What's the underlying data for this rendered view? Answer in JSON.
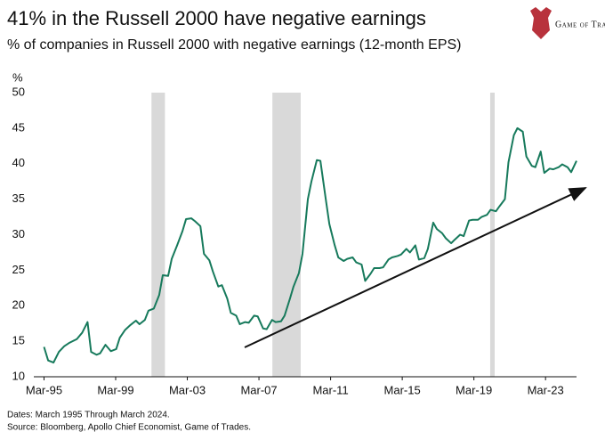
{
  "chart_data": {
    "type": "line",
    "title": "41% in the Russell 2000 have negative earnings",
    "subtitle": "% of companies in Russell 2000 with negative earnings (12-month EPS)",
    "y_label": "%",
    "logo": "Game of Trades",
    "notes": [
      "Dates:  March 1995 Through March 2024.",
      "Source: Bloomberg, Apollo Chief Economist, Game of Trades."
    ],
    "color": "#177a5c",
    "shade_color": "#d9d9d9",
    "shaded": [
      [
        2001.17,
        2001.92
      ],
      [
        2007.92,
        2009.5
      ],
      [
        2020.08,
        2020.33
      ]
    ],
    "x": [
      1995.17,
      1995.4,
      1995.7,
      1996.0,
      1996.3,
      1996.6,
      1997.0,
      1997.3,
      1997.6,
      1997.8,
      1998.1,
      1998.3,
      1998.6,
      1998.9,
      1999.2,
      1999.4,
      1999.7,
      2000.0,
      2000.3,
      2000.5,
      2000.8,
      2001.0,
      2001.3,
      2001.6,
      2001.8,
      2002.1,
      2002.3,
      2002.6,
      2002.9,
      2003.1,
      2003.4,
      2003.6,
      2003.9,
      2004.1,
      2004.4,
      2004.6,
      2004.9,
      2005.1,
      2005.4,
      2005.6,
      2005.9,
      2006.1,
      2006.4,
      2006.6,
      2006.9,
      2007.1,
      2007.4,
      2007.6,
      2007.9,
      2008.1,
      2008.4,
      2008.6,
      2008.9,
      2009.1,
      2009.4,
      2009.6,
      2009.9,
      2010.1,
      2010.4,
      2010.6,
      2010.9,
      2011.1,
      2011.4,
      2011.6,
      2011.9,
      2012.1,
      2012.4,
      2012.6,
      2012.9,
      2013.1,
      2013.4,
      2013.6,
      2013.9,
      2014.1,
      2014.4,
      2014.6,
      2014.9,
      2015.1,
      2015.4,
      2015.6,
      2015.9,
      2016.1,
      2016.4,
      2016.6,
      2016.9,
      2017.1,
      2017.4,
      2017.6,
      2017.9,
      2018.1,
      2018.4,
      2018.6,
      2018.9,
      2019.1,
      2019.4,
      2019.6,
      2019.9,
      2020.1,
      2020.4,
      2020.6,
      2020.9,
      2021.1,
      2021.4,
      2021.6,
      2021.9,
      2022.1,
      2022.4,
      2022.6,
      2022.9,
      2023.1,
      2023.4,
      2023.6,
      2023.9,
      2024.1,
      2024.4,
      2024.6,
      2024.9
    ],
    "values": [
      14.2,
      12.3,
      12.0,
      13.5,
      14.3,
      14.8,
      15.3,
      16.2,
      17.7,
      13.5,
      13.1,
      13.3,
      14.5,
      13.6,
      13.9,
      15.5,
      16.6,
      17.3,
      17.9,
      17.4,
      18.0,
      19.3,
      19.6,
      21.5,
      24.3,
      24.2,
      26.6,
      28.5,
      30.5,
      32.2,
      32.3,
      31.9,
      31.2,
      27.3,
      26.4,
      24.8,
      22.7,
      22.9,
      21.0,
      19.0,
      18.6,
      17.4,
      17.7,
      17.6,
      18.6,
      18.5,
      16.8,
      16.7,
      18.0,
      17.7,
      17.8,
      18.6,
      21.0,
      22.7,
      24.6,
      27.3,
      35.0,
      37.5,
      40.5,
      40.4,
      35.0,
      31.5,
      28.5,
      26.8,
      26.3,
      26.6,
      26.8,
      26.1,
      25.8,
      23.5,
      24.5,
      25.3,
      25.3,
      25.4,
      26.5,
      26.8,
      27.0,
      27.2,
      28.0,
      27.5,
      28.5,
      26.5,
      26.7,
      28.0,
      31.7,
      30.8,
      30.2,
      29.5,
      28.8,
      29.3,
      30.0,
      29.8,
      32.0,
      32.1,
      32.1,
      32.5,
      32.8,
      33.5,
      33.3,
      34.0,
      35.0,
      40.2,
      44.0,
      45.0,
      44.5,
      41.0,
      39.7,
      39.5,
      41.7,
      38.7,
      39.3,
      39.2,
      39.5,
      39.9,
      39.5,
      38.8,
      40.4
    ],
    "xlim": [
      1994.6,
      2024.9
    ],
    "xticks": [
      {
        "value": 1995.17,
        "label": "Mar-95"
      },
      {
        "value": 1999.17,
        "label": "Mar-99"
      },
      {
        "value": 2003.17,
        "label": "Mar-03"
      },
      {
        "value": 2007.17,
        "label": "Mar-07"
      },
      {
        "value": 2011.17,
        "label": "Mar-11"
      },
      {
        "value": 2015.17,
        "label": "Mar-15"
      },
      {
        "value": 2019.17,
        "label": "Mar-19"
      },
      {
        "value": 2023.17,
        "label": "Mar-23"
      }
    ],
    "ylim": [
      10,
      50
    ],
    "yticks": [
      10,
      15,
      20,
      25,
      30,
      35,
      40,
      45,
      50
    ],
    "grid": false
  }
}
